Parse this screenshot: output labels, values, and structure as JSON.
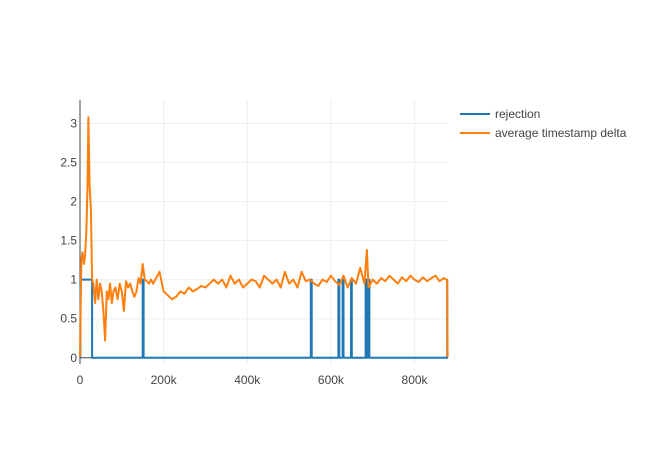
{
  "chart_data": {
    "type": "line",
    "title": "",
    "xlabel": "",
    "ylabel": "",
    "xlim": [
      0,
      880000
    ],
    "ylim": [
      -0.08,
      3.3
    ],
    "x_ticks": [
      {
        "value": 0,
        "label": "0"
      },
      {
        "value": 200000,
        "label": "200k"
      },
      {
        "value": 400000,
        "label": "400k"
      },
      {
        "value": 600000,
        "label": "600k"
      },
      {
        "value": 800000,
        "label": "800k"
      }
    ],
    "y_ticks": [
      {
        "value": 0,
        "label": "0"
      },
      {
        "value": 0.5,
        "label": "0.5"
      },
      {
        "value": 1,
        "label": "1"
      },
      {
        "value": 1.5,
        "label": "1.5"
      },
      {
        "value": 2,
        "label": "2"
      },
      {
        "value": 2.5,
        "label": "2.5"
      },
      {
        "value": 3,
        "label": "3"
      }
    ],
    "grid": true,
    "legend_position": "top-right",
    "series": [
      {
        "name": "rejection",
        "color": "#1f77b4",
        "x": [
          0,
          1000,
          1000,
          3000,
          3000,
          29000,
          29000,
          150000,
          150000,
          152000,
          152000,
          552000,
          552000,
          554000,
          554000,
          618000,
          618000,
          620000,
          620000,
          628000,
          628000,
          630000,
          630000,
          648000,
          648000,
          650000,
          650000,
          683000,
          683000,
          685000,
          685000,
          690000,
          690000,
          692000,
          692000,
          878000,
          878000
        ],
        "values": [
          0,
          0,
          1,
          1,
          1,
          1,
          0,
          0,
          1,
          1,
          0,
          0,
          1,
          1,
          0,
          0,
          1,
          1,
          0,
          0,
          1,
          1,
          0,
          0,
          1,
          1,
          0,
          0,
          1,
          1,
          0,
          0,
          1,
          1,
          0,
          0,
          1
        ]
      },
      {
        "name": "average timestamp delta",
        "color": "#ff7f0e",
        "x": [
          0,
          3000,
          6000,
          9000,
          12000,
          15000,
          18000,
          20000,
          23000,
          26000,
          29000,
          32000,
          36000,
          40000,
          44000,
          48000,
          52000,
          56000,
          60000,
          64000,
          68000,
          72000,
          76000,
          80000,
          85000,
          90000,
          95000,
          100000,
          105000,
          110000,
          115000,
          120000,
          125000,
          130000,
          135000,
          140000,
          145000,
          150000,
          155000,
          160000,
          165000,
          170000,
          175000,
          180000,
          190000,
          200000,
          210000,
          220000,
          230000,
          240000,
          250000,
          260000,
          270000,
          280000,
          290000,
          300000,
          310000,
          320000,
          330000,
          340000,
          350000,
          360000,
          370000,
          380000,
          390000,
          400000,
          410000,
          420000,
          430000,
          440000,
          450000,
          460000,
          470000,
          480000,
          490000,
          500000,
          510000,
          520000,
          530000,
          540000,
          550000,
          560000,
          570000,
          580000,
          590000,
          600000,
          610000,
          620000,
          630000,
          640000,
          650000,
          660000,
          670000,
          680000,
          686000,
          690000,
          700000,
          710000,
          720000,
          730000,
          740000,
          750000,
          760000,
          770000,
          780000,
          790000,
          800000,
          810000,
          820000,
          830000,
          840000,
          850000,
          860000,
          870000,
          876000,
          878000,
          879000
        ],
        "values": [
          0.01,
          1.25,
          1.35,
          1.2,
          1.3,
          1.6,
          2.2,
          3.08,
          2.2,
          1.9,
          1.0,
          0.95,
          0.7,
          1.0,
          0.75,
          0.95,
          0.85,
          0.6,
          0.22,
          0.85,
          0.75,
          0.95,
          0.7,
          0.85,
          0.9,
          0.75,
          0.95,
          0.85,
          0.6,
          0.98,
          0.9,
          0.95,
          0.85,
          0.78,
          0.85,
          1.02,
          0.95,
          1.2,
          1.0,
          0.98,
          0.95,
          1.0,
          0.95,
          1.0,
          1.1,
          0.85,
          0.8,
          0.75,
          0.78,
          0.85,
          0.82,
          0.9,
          0.85,
          0.88,
          0.92,
          0.9,
          0.95,
          1.0,
          0.95,
          1.0,
          0.9,
          1.05,
          0.95,
          1.0,
          0.9,
          0.95,
          1.0,
          0.98,
          0.9,
          1.05,
          1.0,
          0.95,
          1.0,
          0.9,
          1.1,
          0.95,
          1.0,
          0.9,
          1.1,
          0.98,
          1.0,
          0.95,
          0.92,
          1.0,
          0.97,
          1.05,
          0.98,
          0.93,
          1.05,
          0.9,
          1.02,
          0.95,
          1.15,
          0.95,
          1.38,
          0.9,
          1.0,
          0.95,
          1.02,
          0.98,
          1.05,
          1.0,
          0.95,
          1.03,
          0.98,
          1.05,
          1.0,
          0.97,
          1.03,
          0.98,
          1.02,
          1.05,
          0.98,
          1.02,
          1.0,
          1.0,
          0.01
        ]
      }
    ]
  }
}
